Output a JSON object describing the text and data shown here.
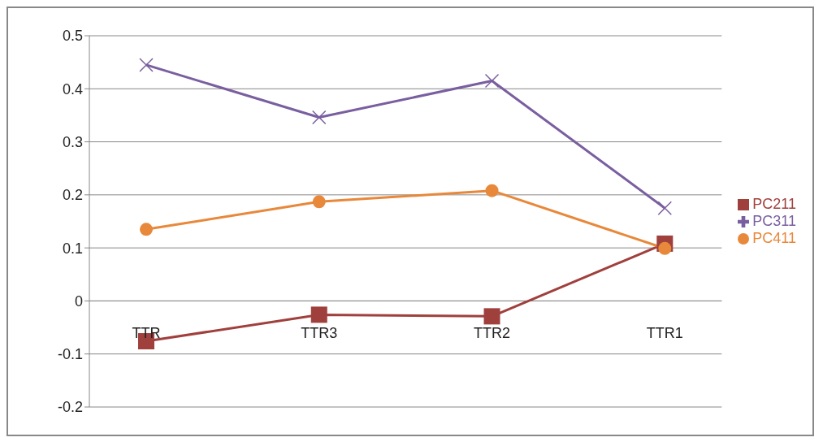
{
  "chart_data": {
    "type": "line",
    "categories": [
      "TTR",
      "TTR3",
      "TTR2",
      "TTR1"
    ],
    "series": [
      {
        "name": "PC211",
        "color": "#a0403d",
        "marker": "square",
        "values": [
          -0.076,
          -0.026,
          -0.029,
          0.108
        ]
      },
      {
        "name": "PC311",
        "color": "#7a5fa0",
        "marker": "cross",
        "values": [
          0.445,
          0.346,
          0.415,
          0.175
        ]
      },
      {
        "name": "PC411",
        "color": "#e8883a",
        "marker": "circle",
        "values": [
          0.135,
          0.187,
          0.208,
          0.099
        ]
      }
    ],
    "ylim": [
      -0.2,
      0.5
    ],
    "yticks": [
      -0.2,
      -0.1,
      0,
      0.1,
      0.2,
      0.3,
      0.4,
      0.5
    ],
    "grid": "y",
    "legend": "right"
  }
}
